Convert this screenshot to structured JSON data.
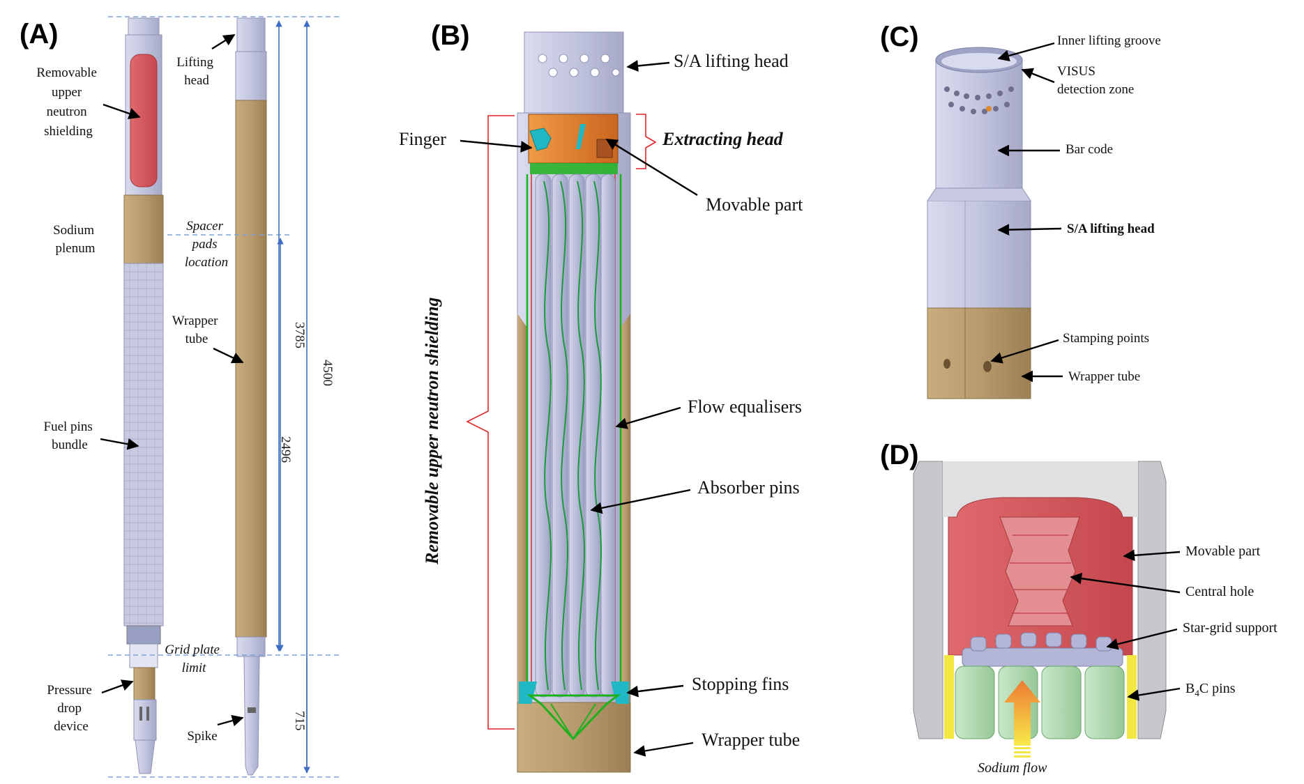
{
  "panels": {
    "a": {
      "id": "(A)",
      "labels": {
        "upper_shielding": [
          "Removable",
          "upper",
          "neutron",
          "shielding"
        ],
        "lifting_head": [
          "Lifting",
          "head"
        ],
        "sodium_plenum": [
          "Sodium",
          "plenum"
        ],
        "spacer_pads": [
          "Spacer",
          "pads",
          "location"
        ],
        "wrapper_tube": [
          "Wrapper",
          "tube"
        ],
        "fuel_pins": [
          "Fuel pins",
          "bundle"
        ],
        "grid_plate": [
          "Grid plate",
          "limit"
        ],
        "pressure_drop": [
          "Pressure",
          "drop",
          "device"
        ],
        "spike": [
          "Spike"
        ]
      },
      "dimensions": {
        "total": "4500",
        "upper": "3785",
        "middle": "2496",
        "lower": "715"
      }
    },
    "b": {
      "id": "(B)",
      "labels": {
        "sa_lifting_head": "S/A lifting head",
        "finger": "Finger",
        "extracting_head": "Extracting head",
        "movable_part": "Movable part",
        "removable_shielding": "Removable upper neutron shielding",
        "flow_equalisers": "Flow equalisers",
        "absorber_pins": "Absorber pins",
        "stopping_fins": "Stopping fins",
        "wrapper_tube": "Wrapper tube"
      }
    },
    "c": {
      "id": "(C)",
      "labels": {
        "inner_groove": "Inner lifting groove",
        "visus": [
          "VISUS",
          "detection zone"
        ],
        "bar_code": "Bar code",
        "sa_lifting_head": "S/A lifting head",
        "stamping": "Stamping points",
        "wrapper_tube": "Wrapper tube"
      }
    },
    "d": {
      "id": "(D)",
      "labels": {
        "movable_part": "Movable part",
        "central_hole": "Central hole",
        "star_grid": "Star-grid support",
        "b4c_main": "B",
        "b4c_sub": "4",
        "b4c_tail": "C pins",
        "sodium_flow": "Sodium flow"
      }
    }
  },
  "colors": {
    "steel": "#c5c7e0",
    "steel_dark": "#a9acc9",
    "wrapper": "#b89b6e",
    "shield_red": "#d4555a",
    "copper_orange": "#e07a2c",
    "green_line": "#1db11d",
    "cyan": "#20b8c4",
    "pin_green": "#b5dcb5",
    "yellow": "#f3e843",
    "dim_blue": "#3f6fc4"
  }
}
